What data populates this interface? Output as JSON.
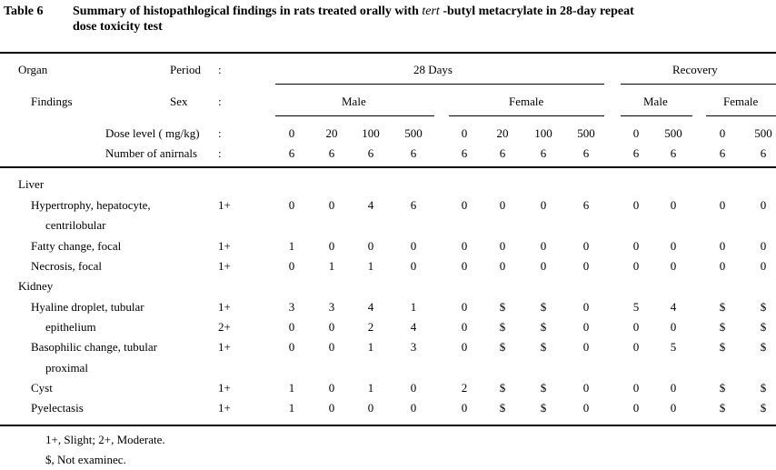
{
  "caption": {
    "label": "Table 6",
    "text_before": "Summary of histopathlogical findings in rats treated orally with ",
    "italic": "tert",
    "text_after": " -butyl metacrylate in 28-day repeat",
    "line2": "dose toxicity test"
  },
  "header": {
    "organ": "Organ",
    "findings": "Findings",
    "period_label": "Period",
    "sex_label": "Sex",
    "dose_label": "Dose level ( mg/kg)",
    "number_label": "Number of anirnals",
    "colon": ":",
    "period_28": "28 Days",
    "period_recovery": "Recovery",
    "male": "Male",
    "female": "Female",
    "doses": [
      "0",
      "20",
      "100",
      "500",
      "0",
      "20",
      "100",
      "500",
      "0",
      "500",
      "0",
      "500"
    ],
    "numbers": [
      "6",
      "6",
      "6",
      "6",
      "6",
      "6",
      "6",
      "6",
      "6",
      "6",
      "6",
      "6"
    ]
  },
  "rows": [
    {
      "type": "organ",
      "label": "Liver"
    },
    {
      "type": "finding",
      "label": "Hypertrophy, hepatocyte,",
      "grade": "1+",
      "values": [
        "0",
        "0",
        "4",
        "6",
        "0",
        "0",
        "0",
        "6",
        "0",
        "0",
        "0",
        "0"
      ]
    },
    {
      "type": "cont",
      "label": "centrilobular"
    },
    {
      "type": "finding",
      "label": "Fatty change, focal",
      "grade": "1+",
      "values": [
        "1",
        "0",
        "0",
        "0",
        "0",
        "0",
        "0",
        "0",
        "0",
        "0",
        "0",
        "0"
      ]
    },
    {
      "type": "finding",
      "label": "Necrosis, focal",
      "grade": "1+",
      "values": [
        "0",
        "1",
        "1",
        "0",
        "0",
        "0",
        "0",
        "0",
        "0",
        "0",
        "0",
        "0"
      ]
    },
    {
      "type": "organ",
      "label": "Kidney"
    },
    {
      "type": "finding",
      "label": "Hyaline droplet, tubular",
      "grade": "1+",
      "values": [
        "3",
        "3",
        "4",
        "1",
        "0",
        "$",
        "$",
        "0",
        "5",
        "4",
        "$",
        "$"
      ]
    },
    {
      "type": "finding",
      "label": "epithelium",
      "indent": true,
      "grade": "2+",
      "values": [
        "0",
        "0",
        "2",
        "4",
        "0",
        "$",
        "$",
        "0",
        "0",
        "0",
        "$",
        "$"
      ]
    },
    {
      "type": "finding",
      "label": "Basophilic change, tubular",
      "grade": "1+",
      "values": [
        "0",
        "0",
        "1",
        "3",
        "0",
        "$",
        "$",
        "0",
        "0",
        "5",
        "$",
        "$"
      ]
    },
    {
      "type": "cont",
      "label": "proximal"
    },
    {
      "type": "finding",
      "label": "Cyst",
      "grade": "1+",
      "values": [
        "1",
        "0",
        "1",
        "0",
        "2",
        "$",
        "$",
        "0",
        "0",
        "0",
        "$",
        "$"
      ]
    },
    {
      "type": "finding",
      "label": "Pyelectasis",
      "grade": "1+",
      "values": [
        "1",
        "0",
        "0",
        "0",
        "0",
        "$",
        "$",
        "0",
        "0",
        "0",
        "$",
        "$"
      ]
    }
  ],
  "footnotes": [
    "1+, Slight;  2+, Moderate.",
    "$, Not examinec."
  ]
}
